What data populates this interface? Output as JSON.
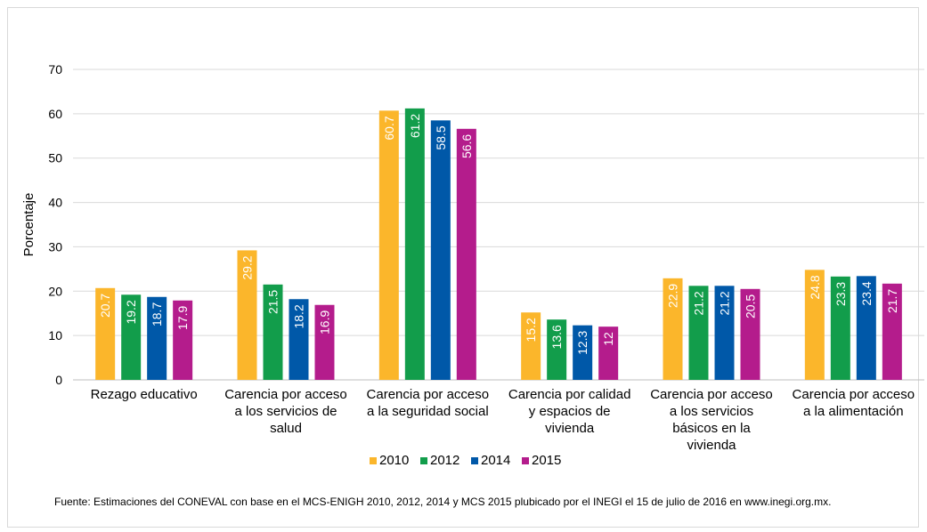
{
  "chart_data": {
    "type": "bar",
    "ylabel": "Porcentaje",
    "ylim": [
      0,
      70
    ],
    "yticks": [
      "0",
      "10",
      "20",
      "30",
      "40",
      "50",
      "60",
      "70"
    ],
    "grid": true,
    "legend_position": "bottom",
    "categories": [
      [
        "Rezago educativo"
      ],
      [
        "Carencia por acceso",
        "a los servicios de",
        "salud"
      ],
      [
        "Carencia por acceso",
        "a la seguridad social"
      ],
      [
        "Carencia por calidad",
        "y espacios de",
        "vivienda"
      ],
      [
        "Carencia por acceso",
        "a los servicios",
        "básicos en la",
        "vivienda"
      ],
      [
        "Carencia por acceso",
        "a la alimentación"
      ]
    ],
    "series": [
      {
        "name": "2010",
        "color": "#fbb62b",
        "values": [
          20.7,
          29.2,
          60.7,
          15.2,
          22.9,
          24.8
        ],
        "labels": [
          "20.7",
          "29.2",
          "60.7",
          "15.2",
          "22.9",
          "24.8"
        ]
      },
      {
        "name": "2012",
        "color": "#129d4b",
        "values": [
          19.2,
          21.5,
          61.2,
          13.6,
          21.2,
          23.3
        ],
        "labels": [
          "19.2",
          "21.5",
          "61.2",
          "13.6",
          "21.2",
          "23.3"
        ]
      },
      {
        "name": "2014",
        "color": "#0058a8",
        "values": [
          18.7,
          18.2,
          58.5,
          12.3,
          21.2,
          23.4
        ],
        "labels": [
          "18.7",
          "18.2",
          "58.5",
          "12.3",
          "21.2",
          "23.4"
        ]
      },
      {
        "name": "2015",
        "color": "#b41c8c",
        "values": [
          17.9,
          16.9,
          56.6,
          12,
          20.5,
          21.7
        ],
        "labels": [
          "17.9",
          "16.9",
          "56.6",
          "12",
          "20.5",
          "21.7"
        ]
      }
    ]
  },
  "source_note": "Fuente: Estimaciones del CONEVAL con base en el MCS-ENIGH 2010, 2012, 2014 y MCS 2015 plubicado por el INEGI el 15 de julio de 2016 en www.inegi.org.mx."
}
